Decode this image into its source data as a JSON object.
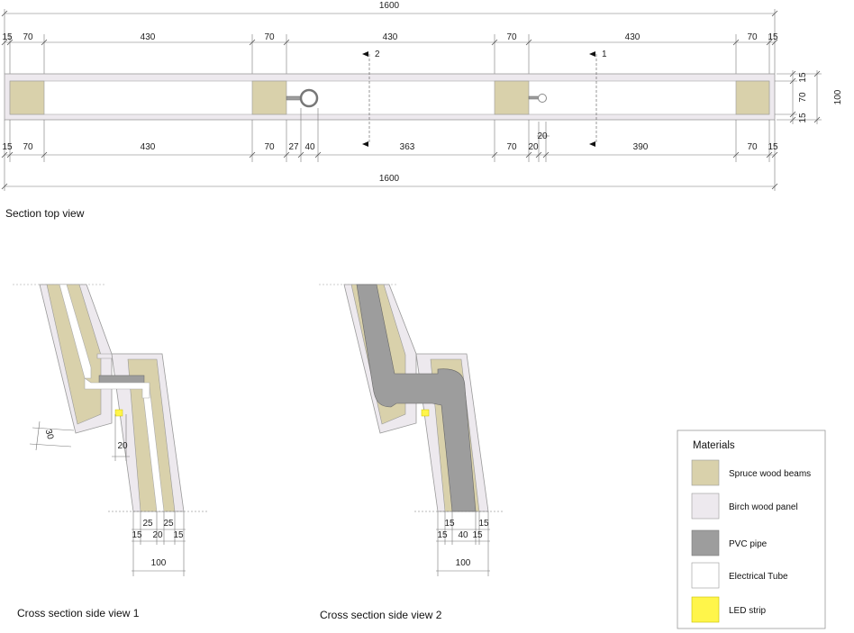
{
  "captions": {
    "top_view": "Section top view",
    "side_view_1": "Cross section side view 1",
    "side_view_2": "Cross section side view 2"
  },
  "top_view": {
    "overall_top": "1600",
    "overall_bottom": "1600",
    "top_row": [
      "15",
      "70",
      "430",
      "70",
      "430",
      "70",
      "430",
      "70",
      "15"
    ],
    "bottom_row": [
      "15",
      "70",
      "430",
      "70",
      "27",
      "40",
      "363",
      "70",
      "20",
      "390",
      "70",
      "15"
    ],
    "offset_label": "20",
    "right_column": [
      "15",
      "70",
      "15"
    ],
    "right_total": "100",
    "section_markers": [
      "2",
      "1"
    ]
  },
  "side_view_1": {
    "top_row": [
      "25",
      "25"
    ],
    "bottom_row": [
      "15",
      "20",
      "15"
    ],
    "total": "100",
    "dim_30": "30",
    "dim_20": "20"
  },
  "side_view_2": {
    "top_row": [
      "15",
      "15"
    ],
    "bottom_row": [
      "15",
      "40",
      "15"
    ],
    "total": "100"
  },
  "legend": {
    "title": "Materials",
    "items": [
      {
        "label": "Spruce wood beams",
        "color": "#d9d1ab"
      },
      {
        "label": "Birch wood panel",
        "color": "#ede9ee"
      },
      {
        "label": "PVC pipe",
        "color": "#9d9d9d"
      },
      {
        "label": "Electrical Tube",
        "color": "#ffffff"
      },
      {
        "label": "LED strip",
        "color": "#fff54a"
      }
    ]
  },
  "colors": {
    "spruce": "#d9d1ab",
    "birch": "#ede9ee",
    "pvc": "#9d9d9d",
    "tube": "#ffffff",
    "led": "#fff54a"
  }
}
